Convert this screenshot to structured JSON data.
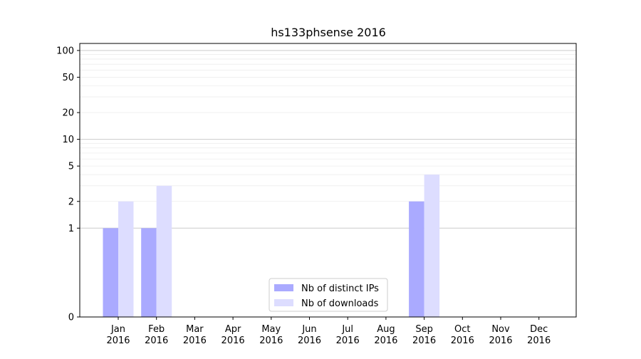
{
  "chart_data": {
    "type": "bar",
    "title": "hs133phsense 2016",
    "xlabel": "",
    "ylabel": "",
    "y_scale": "symlog",
    "ylim": [
      0,
      120
    ],
    "y_ticks": [
      0,
      1,
      2,
      5,
      10,
      20,
      50,
      100
    ],
    "y_tick_labels": [
      "0",
      "1",
      "2",
      "5",
      "10",
      "20",
      "50",
      "100"
    ],
    "categories": [
      "Jan\n2016",
      "Feb\n2016",
      "Mar\n2016",
      "Apr\n2016",
      "May\n2016",
      "Jun\n2016",
      "Jul\n2016",
      "Aug\n2016",
      "Sep\n2016",
      "Oct\n2016",
      "Nov\n2016",
      "Dec\n2016"
    ],
    "category_lines": [
      [
        "Jan",
        "2016"
      ],
      [
        "Feb",
        "2016"
      ],
      [
        "Mar",
        "2016"
      ],
      [
        "Apr",
        "2016"
      ],
      [
        "May",
        "2016"
      ],
      [
        "Jun",
        "2016"
      ],
      [
        "Jul",
        "2016"
      ],
      [
        "Aug",
        "2016"
      ],
      [
        "Sep",
        "2016"
      ],
      [
        "Oct",
        "2016"
      ],
      [
        "Nov",
        "2016"
      ],
      [
        "Dec",
        "2016"
      ]
    ],
    "series": [
      {
        "name": "Nb of distinct IPs",
        "color": "#aaaaff",
        "values": [
          1,
          1,
          0,
          0,
          0,
          0,
          0,
          0,
          2,
          0,
          0,
          0
        ]
      },
      {
        "name": "Nb of downloads",
        "color": "#ddddff",
        "values": [
          2,
          3,
          0,
          0,
          0,
          0,
          0,
          0,
          4,
          0,
          0,
          0
        ]
      }
    ],
    "grid": true,
    "legend_position": "bottom-center"
  }
}
